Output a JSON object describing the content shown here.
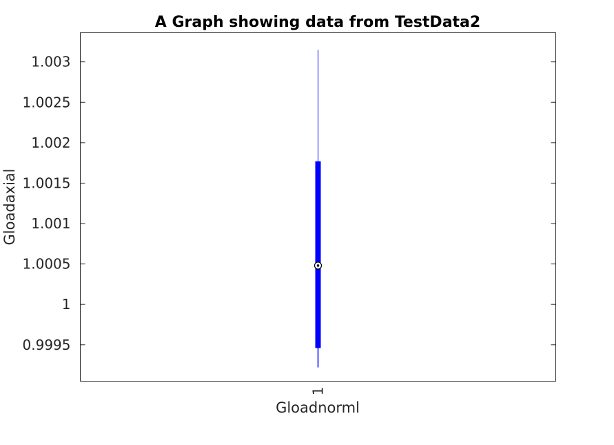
{
  "chart_data": {
    "type": "box",
    "title": "A Graph showing data from TestData2",
    "xlabel": "Gloadnorml",
    "ylabel": "Gloadaxial",
    "categories": [
      "1"
    ],
    "yticks": [
      "0.9995",
      "1",
      "1.0005",
      "1.001",
      "1.0015",
      "1.002",
      "1.0025",
      "1.003"
    ],
    "ylim": [
      0.99905,
      1.00336
    ],
    "grid": false,
    "boxes": [
      {
        "category": "1",
        "whisker_low": 0.99922,
        "q1": 0.99946,
        "median": 1.00048,
        "q3": 1.00177,
        "whisker_high": 1.00315
      }
    ],
    "colors": {
      "box": "#0000ff",
      "axes": "#262626",
      "median_marker": "#000000"
    }
  }
}
